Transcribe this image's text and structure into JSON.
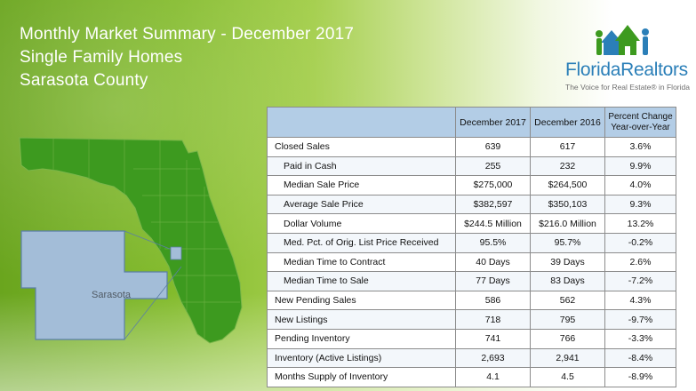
{
  "header": {
    "title": "Monthly Market Summary - December 2017",
    "subtitle": "Single Family Homes",
    "county": "Sarasota County"
  },
  "logo": {
    "name": "FloridaRealtors",
    "tagline": "The Voice for Real Estate® in Florida",
    "icon": "houses-people-icon"
  },
  "map": {
    "label": "Sarasota",
    "state_color": "#3d9a1f",
    "county_color": "#a3bdd8"
  },
  "table": {
    "columns": [
      "",
      "December 2017",
      "December 2016",
      "Percent Change Year-over-Year"
    ],
    "rows": [
      {
        "label": "Closed Sales",
        "sub": false,
        "dec2017": "639",
        "dec2016": "617",
        "pct": "3.6%"
      },
      {
        "label": "Paid in Cash",
        "sub": true,
        "dec2017": "255",
        "dec2016": "232",
        "pct": "9.9%"
      },
      {
        "label": "Median Sale Price",
        "sub": true,
        "dec2017": "$275,000",
        "dec2016": "$264,500",
        "pct": "4.0%"
      },
      {
        "label": "Average Sale Price",
        "sub": true,
        "dec2017": "$382,597",
        "dec2016": "$350,103",
        "pct": "9.3%"
      },
      {
        "label": "Dollar Volume",
        "sub": true,
        "dec2017": "$244.5 Million",
        "dec2016": "$216.0 Million",
        "pct": "13.2%"
      },
      {
        "label": "Med. Pct. of Orig. List Price Received",
        "sub": true,
        "dec2017": "95.5%",
        "dec2016": "95.7%",
        "pct": "-0.2%"
      },
      {
        "label": "Median Time to Contract",
        "sub": true,
        "dec2017": "40 Days",
        "dec2016": "39 Days",
        "pct": "2.6%"
      },
      {
        "label": "Median Time to Sale",
        "sub": true,
        "dec2017": "77 Days",
        "dec2016": "83 Days",
        "pct": "-7.2%"
      },
      {
        "label": "New Pending Sales",
        "sub": false,
        "dec2017": "586",
        "dec2016": "562",
        "pct": "4.3%"
      },
      {
        "label": "New Listings",
        "sub": false,
        "dec2017": "718",
        "dec2016": "795",
        "pct": "-9.7%"
      },
      {
        "label": "Pending Inventory",
        "sub": false,
        "dec2017": "741",
        "dec2016": "766",
        "pct": "-3.3%"
      },
      {
        "label": "Inventory (Active Listings)",
        "sub": false,
        "dec2017": "2,693",
        "dec2016": "2,941",
        "pct": "-8.4%"
      },
      {
        "label": "Months Supply of Inventory",
        "sub": false,
        "dec2017": "4.1",
        "dec2016": "4.5",
        "pct": "-8.9%"
      }
    ]
  }
}
